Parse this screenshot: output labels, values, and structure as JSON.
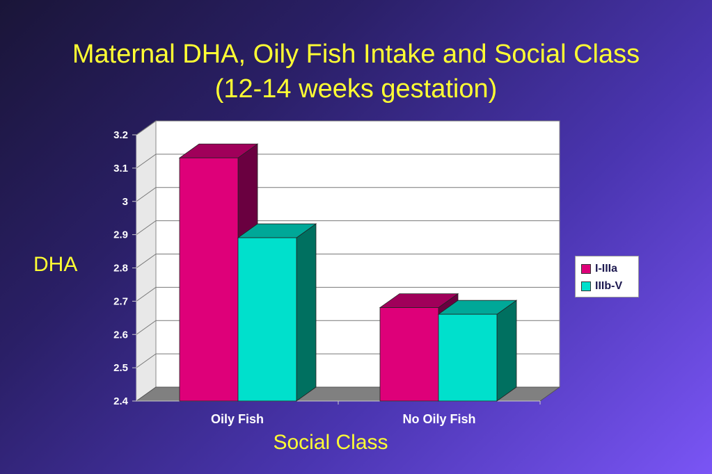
{
  "slide": {
    "title_line1": "Maternal DHA, Oily Fish Intake and Social Class",
    "title_line2": "(12-14 weeks gestation)"
  },
  "chart_data": {
    "type": "bar",
    "style": "3d-clustered",
    "categories": [
      "Oily Fish",
      "No Oily Fish"
    ],
    "series": [
      {
        "name": "I-IIIa",
        "values": [
          3.16,
          2.71
        ],
        "color": "#de0079",
        "top_color": "#a0005a",
        "side_color": "#6a0040"
      },
      {
        "name": "IIIb-V",
        "values": [
          2.92,
          2.69
        ],
        "color": "#00e0cc",
        "top_color": "#00a898",
        "side_color": "#007060"
      }
    ],
    "xlabel": "Social Class",
    "ylabel": "DHA",
    "ylim": [
      2.4,
      3.2
    ],
    "yticks": [
      "2.4",
      "2.5",
      "2.6",
      "2.7",
      "2.8",
      "2.9",
      "3",
      "3.1",
      "3.2"
    ],
    "grid": true,
    "legend_position": "right",
    "colors": {
      "title": "#ffff33",
      "axis_text": "#ffffff",
      "wall": "#ffffff",
      "floor": "#808080"
    }
  }
}
